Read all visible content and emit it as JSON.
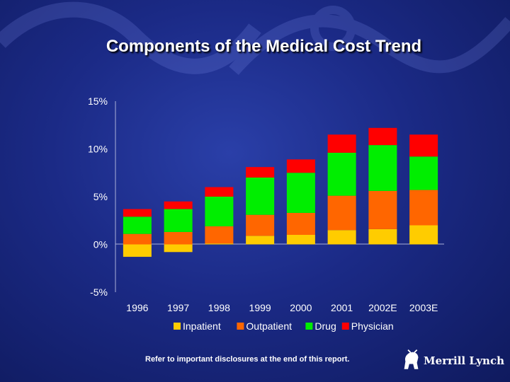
{
  "slide": {
    "footer_note": "Refer to important disclosures at the end of this report.",
    "logo_text": "Merrill Lynch"
  },
  "colors": {
    "inpatient": "#ffcc00",
    "outpatient": "#ff6600",
    "drug": "#00ee00",
    "physician": "#ff0000",
    "axis": "#aab0d8",
    "text": "#ffffff"
  },
  "chart_data": {
    "type": "bar",
    "stacked": true,
    "title": "Components of the Medical Cost Trend",
    "xlabel": "",
    "ylabel": "",
    "ylim": [
      -5,
      15
    ],
    "yticks": [
      15,
      10,
      5,
      0,
      -5
    ],
    "ytick_labels": [
      "15%",
      "10%",
      "5%",
      "0%",
      "-5%"
    ],
    "categories": [
      "1996",
      "1997",
      "1998",
      "1999",
      "2000",
      "2001",
      "2002E",
      "2003E"
    ],
    "series": [
      {
        "name": "Inpatient",
        "color": "#ffcc00",
        "values": [
          -1.3,
          -0.8,
          0.1,
          0.9,
          1.0,
          1.5,
          1.6,
          2.0
        ]
      },
      {
        "name": "Outpatient",
        "color": "#ff6600",
        "values": [
          1.1,
          1.3,
          1.8,
          2.2,
          2.3,
          3.6,
          4.0,
          3.7
        ]
      },
      {
        "name": "Drug",
        "color": "#00ee00",
        "values": [
          1.8,
          2.4,
          3.1,
          3.9,
          4.2,
          4.5,
          4.8,
          3.5
        ]
      },
      {
        "name": "Physician",
        "color": "#ff0000",
        "values": [
          0.8,
          0.8,
          1.0,
          1.1,
          1.4,
          1.9,
          1.8,
          2.3
        ]
      }
    ],
    "legend": [
      "Inpatient",
      "Outpatient",
      "Drug",
      "Physician"
    ],
    "legend_position": "bottom",
    "grid": false
  }
}
